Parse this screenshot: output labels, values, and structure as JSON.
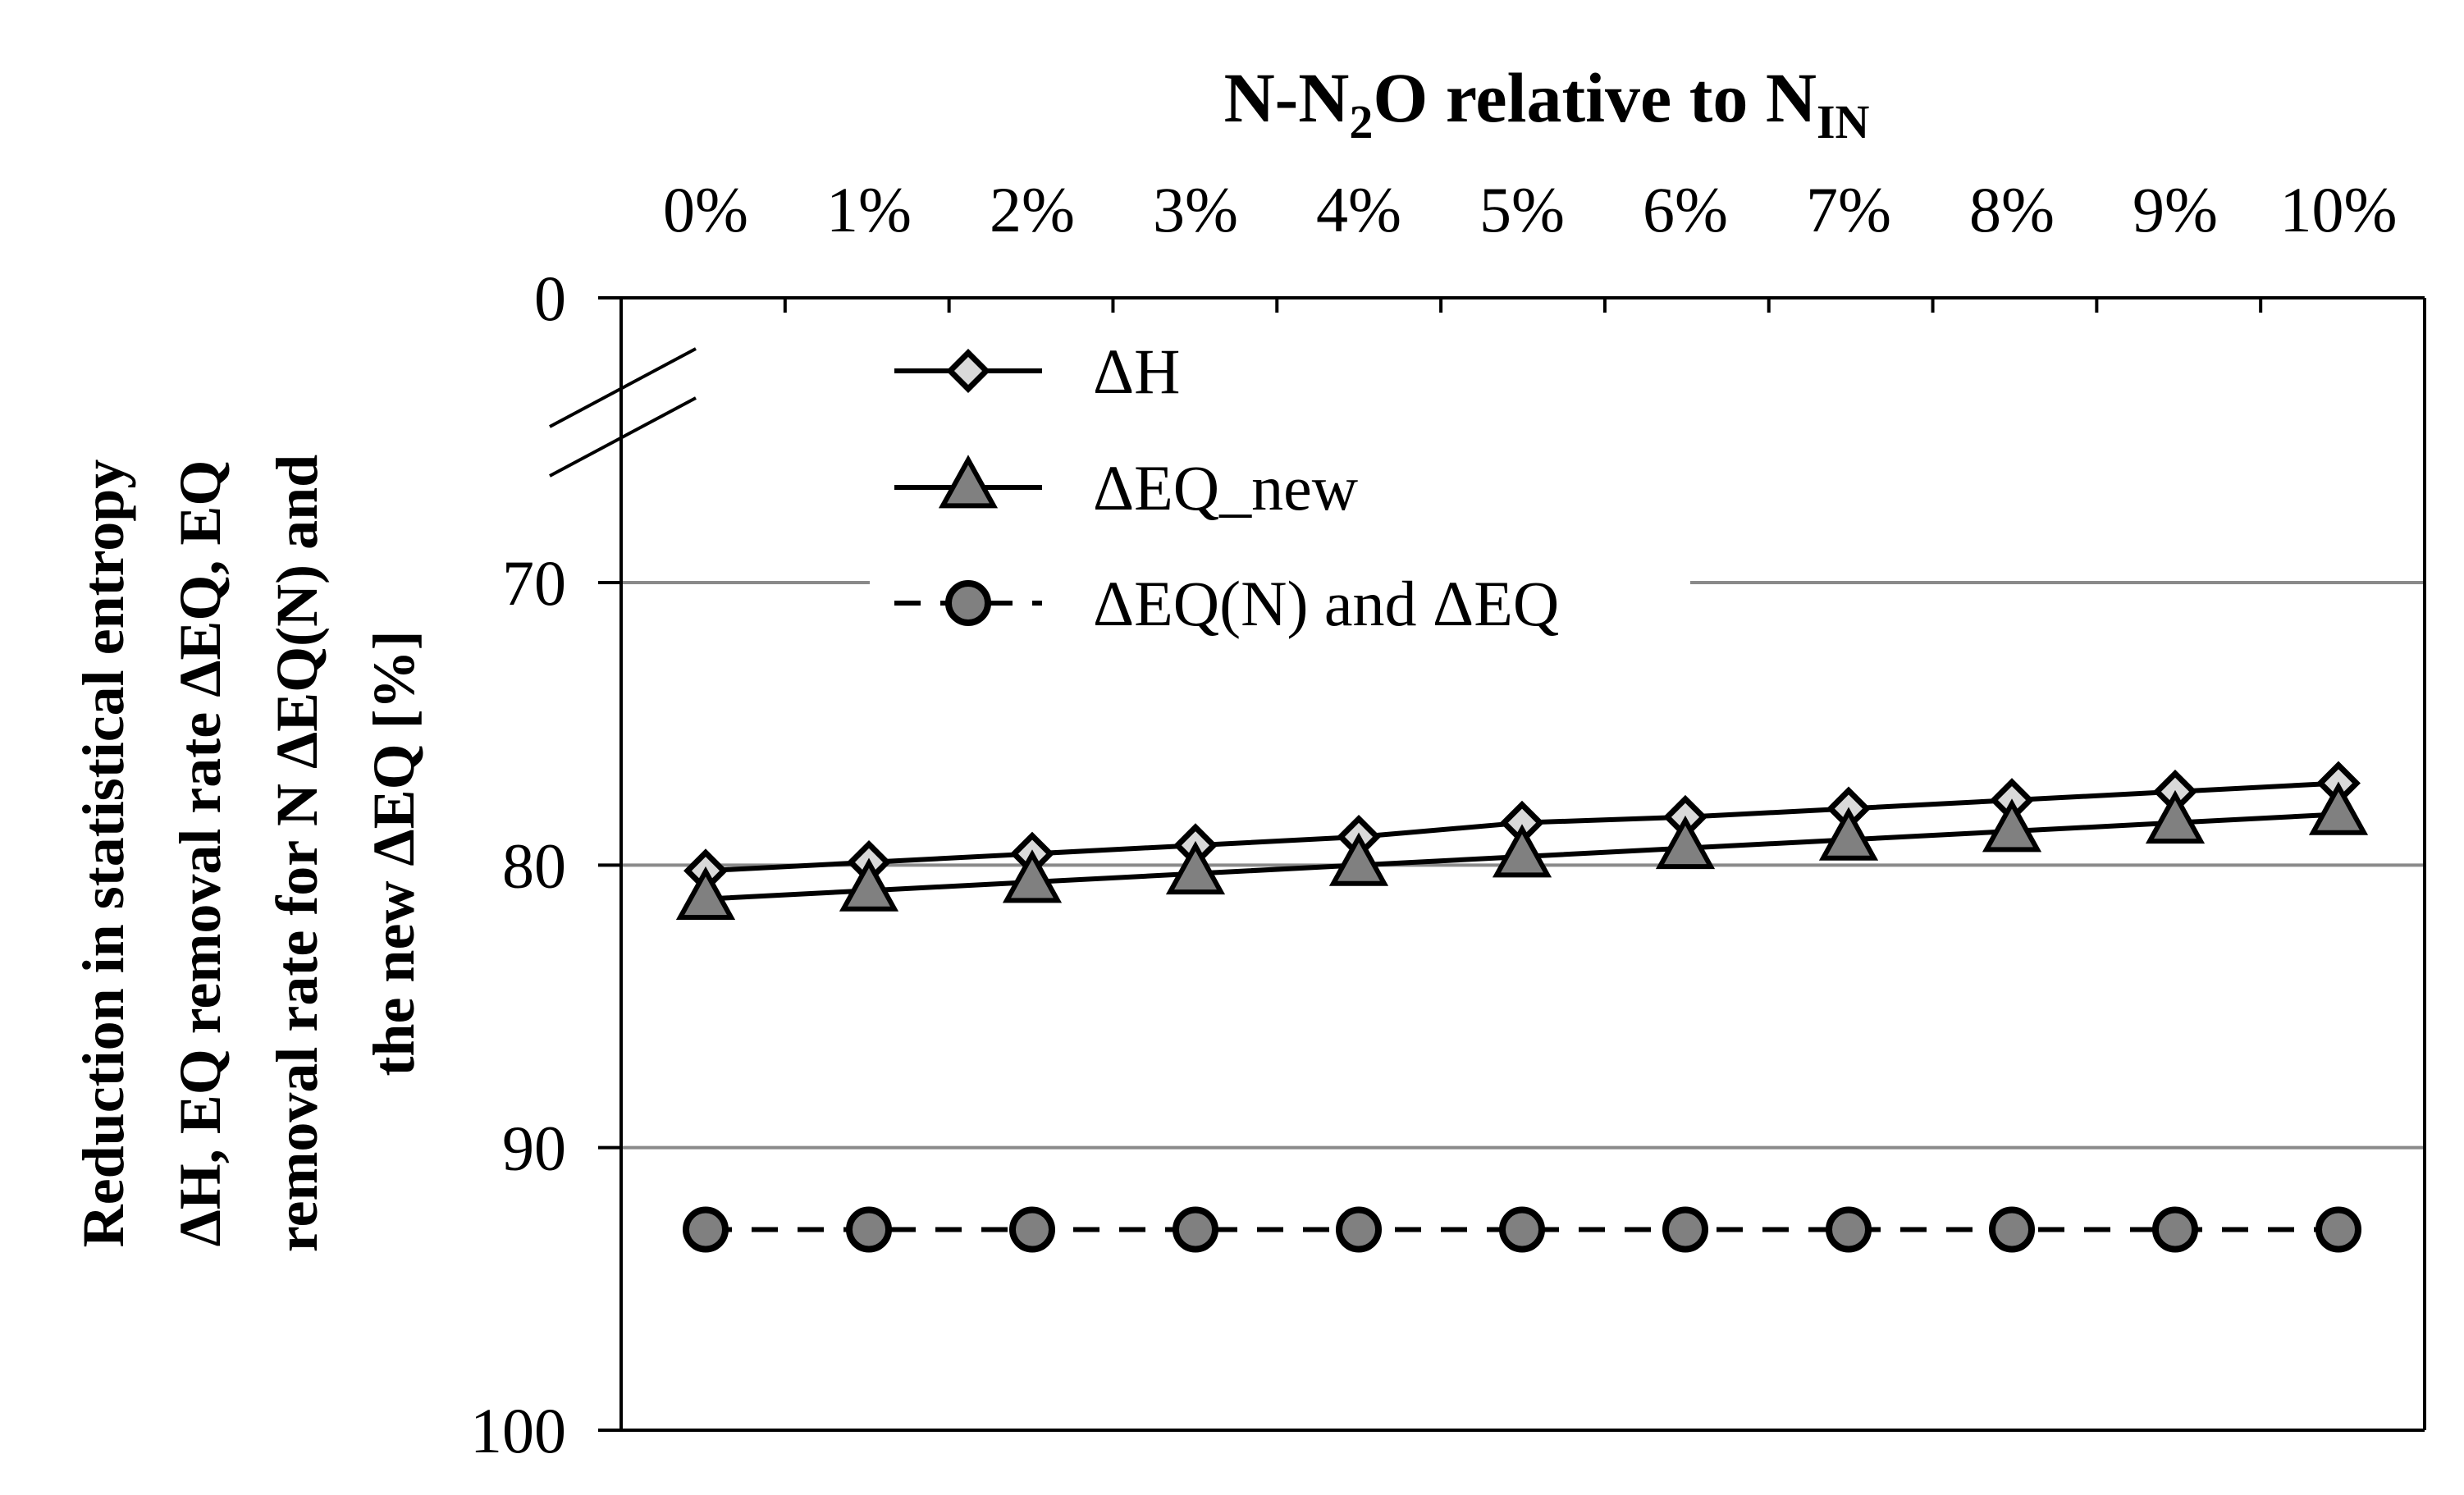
{
  "chart_data": {
    "type": "line",
    "title": {
      "parts": [
        {
          "text": "N-N",
          "sub": false
        },
        {
          "text": "2",
          "sub": true
        },
        {
          "text": "O relative to N",
          "sub": false
        },
        {
          "text": "IN",
          "sub": true
        }
      ]
    },
    "xlabel": "N-N2O relative to NIN",
    "ylabel_lines": [
      "Reduction in statistical entropy",
      "ΔH, EQ removal rate ΔEQ, EQ",
      "removal rate for N ΔEQ(N) and",
      "the new ΔEQ [%]"
    ],
    "x_axis_position": "top",
    "y_axis_inverted": true,
    "y_axis_break": {
      "from": 0,
      "to": 70
    },
    "x": [
      "0%",
      "1%",
      "2%",
      "3%",
      "4%",
      "5%",
      "6%",
      "7%",
      "8%",
      "9%",
      "10%"
    ],
    "yticks": [
      "0",
      "70",
      "80",
      "90",
      "100"
    ],
    "ylim": [
      70,
      100
    ],
    "grid": true,
    "legend_position": "top-left",
    "series": [
      {
        "name": "ΔH",
        "marker": "diamond",
        "line_style": "solid",
        "marker_fill": "#d9d9d9",
        "values": [
          80.2,
          79.9,
          79.6,
          79.3,
          79.0,
          78.5,
          78.3,
          78.0,
          77.7,
          77.4,
          77.1
        ]
      },
      {
        "name": "ΔEQ_new",
        "marker": "triangle",
        "line_style": "solid",
        "marker_fill": "#808080",
        "values": [
          81.2,
          80.9,
          80.6,
          80.3,
          80.0,
          79.7,
          79.4,
          79.1,
          78.8,
          78.5,
          78.2
        ]
      },
      {
        "name": "ΔEQ(N) and ΔEQ",
        "marker": "circle",
        "line_style": "dashed",
        "marker_fill": "#808080",
        "values": [
          92.9,
          92.9,
          92.9,
          92.9,
          92.9,
          92.9,
          92.9,
          92.9,
          92.9,
          92.9,
          92.9
        ]
      }
    ]
  }
}
